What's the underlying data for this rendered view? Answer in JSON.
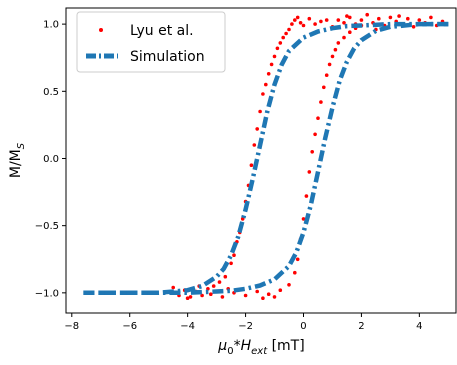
{
  "chart_data": {
    "type": "scatter",
    "xlabel": {
      "base": "μ",
      "sub1": "0",
      "mid": "*H",
      "sub2": "ext",
      "tail": " [mT]"
    },
    "ylabel": {
      "base": "M/M",
      "sub": "S"
    },
    "xlim": [
      -8.2,
      5.3
    ],
    "ylim": [
      -1.15,
      1.12
    ],
    "xticks": [
      -8,
      -6,
      -4,
      -2,
      0,
      2,
      4
    ],
    "xtick_labels": [
      "−8",
      "−6",
      "−4",
      "−2",
      "0",
      "2",
      "4"
    ],
    "yticks": [
      -1.0,
      -0.5,
      0.0,
      0.5,
      1.0
    ],
    "ytick_labels": [
      "−1.0",
      "−0.5",
      "0.0",
      "0.5",
      "1.0"
    ],
    "grid": false,
    "legend_position": "top-left",
    "series": [
      {
        "name": "Lyu et al.",
        "style": "scatter",
        "color": "#ff0000",
        "points": [
          [
            -4.5,
            -0.96
          ],
          [
            -4.3,
            -1.02
          ],
          [
            -4.1,
            -0.98
          ],
          [
            -3.9,
            -1.03
          ],
          [
            -3.7,
            -0.99
          ],
          [
            -3.5,
            -1.02
          ],
          [
            -3.3,
            -0.97
          ],
          [
            -3.1,
            -0.95
          ],
          [
            -2.9,
            -0.92
          ],
          [
            -2.7,
            -0.88
          ],
          [
            -2.5,
            -0.78
          ],
          [
            -2.4,
            -0.72
          ],
          [
            -2.3,
            -0.62
          ],
          [
            -2.2,
            -0.55
          ],
          [
            -2.1,
            -0.45
          ],
          [
            -2.0,
            -0.32
          ],
          [
            -1.9,
            -0.2
          ],
          [
            -1.8,
            -0.05
          ],
          [
            -1.7,
            0.1
          ],
          [
            -1.6,
            0.22
          ],
          [
            -1.5,
            0.35
          ],
          [
            -1.4,
            0.48
          ],
          [
            -1.3,
            0.55
          ],
          [
            -1.2,
            0.63
          ],
          [
            -1.1,
            0.7
          ],
          [
            -1.0,
            0.76
          ],
          [
            -0.9,
            0.82
          ],
          [
            -0.8,
            0.86
          ],
          [
            -0.7,
            0.9
          ],
          [
            -0.6,
            0.93
          ],
          [
            -0.5,
            0.96
          ],
          [
            -0.4,
            1.0
          ],
          [
            -0.3,
            1.03
          ],
          [
            -0.2,
            1.05
          ],
          [
            -0.1,
            1.01
          ],
          [
            0.0,
            0.99
          ],
          [
            0.2,
            1.04
          ],
          [
            0.4,
            1.0
          ],
          [
            0.6,
            1.02
          ],
          [
            0.8,
            1.03
          ],
          [
            1.0,
            0.98
          ],
          [
            1.2,
            1.03
          ],
          [
            1.4,
            1.01
          ],
          [
            1.6,
            1.05
          ],
          [
            1.8,
            1.0
          ],
          [
            2.0,
            1.03
          ],
          [
            2.2,
            1.07
          ],
          [
            2.4,
            1.01
          ],
          [
            2.6,
            1.04
          ],
          [
            2.8,
            0.99
          ],
          [
            3.0,
            1.05
          ],
          [
            3.2,
            1.02
          ],
          [
            3.4,
            1.0
          ],
          [
            3.6,
            1.04
          ],
          [
            3.8,
            0.98
          ],
          [
            4.0,
            1.03
          ],
          [
            4.2,
            1.01
          ],
          [
            4.4,
            1.05
          ],
          [
            4.6,
            0.99
          ],
          [
            4.8,
            1.02
          ],
          [
            -3.2,
            -1.01
          ],
          [
            -2.8,
            -1.03
          ],
          [
            -2.4,
            -1.0
          ],
          [
            -2.0,
            -1.02
          ],
          [
            -1.6,
            -0.99
          ],
          [
            -1.2,
            -1.01
          ],
          [
            -0.8,
            -0.98
          ],
          [
            -0.5,
            -0.94
          ],
          [
            -0.3,
            -0.85
          ],
          [
            -0.2,
            -0.75
          ],
          [
            -0.1,
            -0.6
          ],
          [
            0.0,
            -0.45
          ],
          [
            0.1,
            -0.28
          ],
          [
            0.2,
            -0.1
          ],
          [
            0.3,
            0.05
          ],
          [
            0.4,
            0.18
          ],
          [
            0.5,
            0.3
          ],
          [
            0.6,
            0.42
          ],
          [
            0.7,
            0.53
          ],
          [
            0.8,
            0.62
          ],
          [
            0.9,
            0.7
          ],
          [
            1.0,
            0.76
          ],
          [
            1.1,
            0.81
          ],
          [
            1.2,
            0.86
          ],
          [
            1.4,
            0.9
          ],
          [
            1.6,
            0.94
          ],
          [
            1.8,
            0.97
          ],
          [
            2.0,
            0.99
          ],
          [
            -4.0,
            -1.04
          ],
          [
            -3.6,
            -0.95
          ],
          [
            -2.6,
            -0.97
          ],
          [
            -1.4,
            -1.04
          ],
          [
            -1.0,
            -1.03
          ],
          [
            1.5,
            1.06
          ],
          [
            2.5,
            0.96
          ],
          [
            3.3,
            1.06
          ]
        ]
      },
      {
        "name": "Simulation",
        "style": "dashdot",
        "color": "#1f77b4",
        "descending": [
          [
            5.0,
            1.0
          ],
          [
            4.0,
            1.0
          ],
          [
            3.0,
            1.0
          ],
          [
            2.0,
            0.99
          ],
          [
            1.5,
            0.985
          ],
          [
            1.0,
            0.97
          ],
          [
            0.5,
            0.945
          ],
          [
            0.0,
            0.9
          ],
          [
            -0.5,
            0.8
          ],
          [
            -0.75,
            0.7
          ],
          [
            -1.0,
            0.55
          ],
          [
            -1.25,
            0.35
          ],
          [
            -1.5,
            0.1
          ],
          [
            -1.75,
            -0.15
          ],
          [
            -2.0,
            -0.38
          ],
          [
            -2.25,
            -0.58
          ],
          [
            -2.5,
            -0.72
          ],
          [
            -2.75,
            -0.82
          ],
          [
            -3.0,
            -0.88
          ],
          [
            -3.5,
            -0.95
          ],
          [
            -4.0,
            -0.98
          ],
          [
            -5.0,
            -1.0
          ],
          [
            -6.0,
            -1.0
          ],
          [
            -7.6,
            -1.0
          ]
        ],
        "ascending": [
          [
            -7.6,
            -1.0
          ],
          [
            -6.0,
            -1.0
          ],
          [
            -5.0,
            -1.0
          ],
          [
            -4.0,
            -1.0
          ],
          [
            -3.0,
            -0.99
          ],
          [
            -2.5,
            -0.985
          ],
          [
            -2.0,
            -0.97
          ],
          [
            -1.5,
            -0.945
          ],
          [
            -1.0,
            -0.9
          ],
          [
            -0.5,
            -0.8
          ],
          [
            -0.25,
            -0.7
          ],
          [
            0.0,
            -0.55
          ],
          [
            0.25,
            -0.35
          ],
          [
            0.5,
            -0.1
          ],
          [
            0.75,
            0.15
          ],
          [
            1.0,
            0.38
          ],
          [
            1.25,
            0.58
          ],
          [
            1.5,
            0.72
          ],
          [
            1.75,
            0.82
          ],
          [
            2.0,
            0.88
          ],
          [
            2.5,
            0.95
          ],
          [
            3.0,
            0.98
          ],
          [
            4.0,
            1.0
          ],
          [
            5.0,
            1.0
          ]
        ]
      }
    ]
  }
}
